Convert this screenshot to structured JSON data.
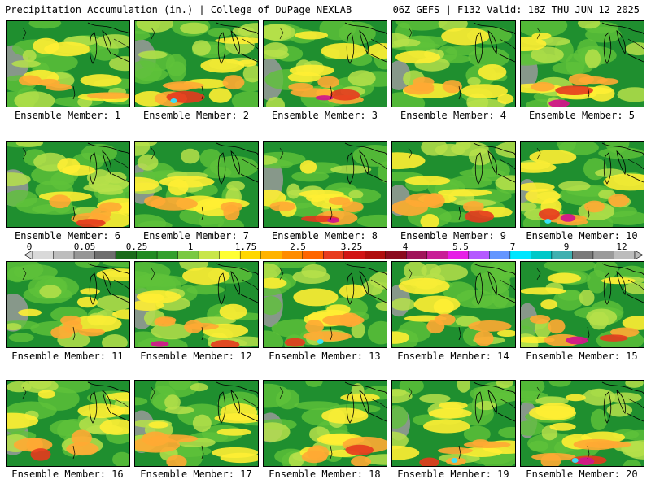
{
  "header": {
    "left_title": "Precipitation Accumulation (in.) | College of DuPage NEXLAB",
    "right_title": "06Z GEFS | F132 Valid: 18Z THU JUN 12 2025"
  },
  "panel_label_prefix": "Ensemble Member: ",
  "panels": [
    {
      "member": "Ensemble Member: 1"
    },
    {
      "member": "Ensemble Member: 2"
    },
    {
      "member": "Ensemble Member: 3"
    },
    {
      "member": "Ensemble Member: 4"
    },
    {
      "member": "Ensemble Member: 5"
    },
    {
      "member": "Ensemble Member: 6"
    },
    {
      "member": "Ensemble Member: 7"
    },
    {
      "member": "Ensemble Member: 8"
    },
    {
      "member": "Ensemble Member: 9"
    },
    {
      "member": "Ensemble Member: 10"
    },
    {
      "member": "Ensemble Member: 11"
    },
    {
      "member": "Ensemble Member: 12"
    },
    {
      "member": "Ensemble Member: 13"
    },
    {
      "member": "Ensemble Member: 14"
    },
    {
      "member": "Ensemble Member: 15"
    },
    {
      "member": "Ensemble Member: 16"
    },
    {
      "member": "Ensemble Member: 17"
    },
    {
      "member": "Ensemble Member: 18"
    },
    {
      "member": "Ensemble Member: 19"
    },
    {
      "member": "Ensemble Member: 20"
    }
  ],
  "colorbar": {
    "tick_labels": [
      "0",
      "0.05",
      "0.25",
      "1",
      "1.75",
      "2.5",
      "3.25",
      "4",
      "5.5",
      "7",
      "9",
      "12"
    ],
    "colors": [
      "#d9d9d9",
      "#bdbdbd",
      "#969696",
      "#6e6e6e",
      "#1a6b1a",
      "#228b22",
      "#33a02c",
      "#7ac943",
      "#c8e64a",
      "#ffff33",
      "#ffd700",
      "#ffb300",
      "#ff8c00",
      "#ff6600",
      "#e83c1e",
      "#d11414",
      "#b00d0d",
      "#8b0a1e",
      "#a0145a",
      "#c81e96",
      "#e61ee6",
      "#b45aff",
      "#6496ff",
      "#00e6ff",
      "#00c8c8",
      "#40b0b0",
      "#7a7a7a",
      "#9a9a9a",
      "#bcbcbc"
    ]
  },
  "map_colors": {
    "green": "#1f8f2f",
    "light_green": "#5fc23a",
    "yellow_green": "#b6e04a",
    "yellow": "#ffee33",
    "orange": "#ffaa33",
    "red": "#e63a1e",
    "magenta": "#d1178a",
    "cyan": "#33e6ff",
    "gray": "#9a9a9a"
  }
}
